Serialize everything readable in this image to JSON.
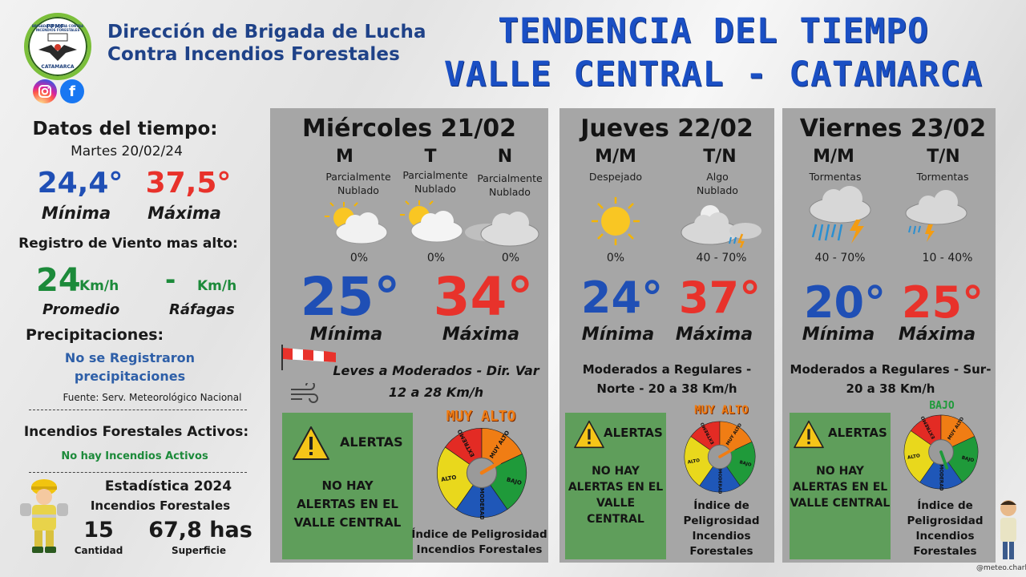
{
  "header": {
    "org_line1": "Dirección de Brigada de Lucha",
    "org_line2": "Contra Incendios Forestales",
    "logo_top": "BRIGADA DE LUCHA CONTRA INCENDIOS FORESTALES",
    "logo_badge": "PPMF",
    "logo_bottom": "CATAMARCA",
    "title_line1": "TENDENCIA DEL TIEMPO",
    "title_line2": "VALLE CENTRAL - CATAMARCA",
    "social": [
      {
        "icon": "instagram-icon",
        "color": "#d6249f"
      },
      {
        "icon": "facebook-icon",
        "color": "#1877f2",
        "glyph": "f"
      }
    ]
  },
  "left": {
    "datos_title": "Datos del tiempo:",
    "datos_date": "Martes 20/02/24",
    "min_value": "24,4°",
    "min_label": "Mínima",
    "max_value": "37,5°",
    "max_label": "Máxima",
    "viento_title": "Registro de Viento mas alto:",
    "viento_prom_value": "24",
    "viento_prom_unit": "Km/h",
    "viento_prom_label": "Promedio",
    "viento_raf_value": "-",
    "viento_raf_unit": "Km/h",
    "viento_raf_label": "Ráfagas",
    "precip_title": "Precipitaciones:",
    "precip_line1": "No se Registraron",
    "precip_line2": "precipitaciones",
    "fuente": "Fuente: Serv. Meteorológico Nacional",
    "incendios_title": "Incendios Forestales Activos:",
    "incendios_value": "No hay Incendios Activos",
    "estad_title": "Estadística 2024",
    "estad_sub": "Incendios Forestales",
    "cantidad_value": "15",
    "cantidad_label": "Cantidad",
    "superficie_value": "67,8 has",
    "superficie_label": "Superficie"
  },
  "days": [
    {
      "title": "Miércoles 21/02",
      "periods": [
        {
          "label": "M",
          "cond1": "Parcialmente",
          "cond2": "Nublado",
          "icon": "partly-cloudy-icon",
          "pct": "0%"
        },
        {
          "label": "T",
          "cond1": "Parcialmente",
          "cond2": "Nublado",
          "icon": "partly-cloudy-icon",
          "pct": "0%"
        },
        {
          "label": "N",
          "cond1": "Parcialmente",
          "cond2": "Nublado",
          "icon": "cloudy-icon",
          "pct": "0%"
        }
      ],
      "min": "25°",
      "min_label": "Mínima",
      "max": "34°",
      "max_label": "Máxima",
      "wind_line1": "Leves a Moderados - Dir. Var",
      "wind_line2": "12 a 28 Km/h",
      "alert_title": "ALERTAS",
      "alert_l1": "NO HAY",
      "alert_l2": "ALERTAS EN EL",
      "alert_l3": "VALLE CENTRAL",
      "risk": "MUY ALTO",
      "idx_l1": "Índice de Peligrosidad",
      "idx_l2": "Incendios Forestales"
    },
    {
      "title": "Jueves 22/02",
      "periods": [
        {
          "label": "M/M",
          "cond1": "Despejado",
          "cond2": "",
          "icon": "sunny-icon",
          "pct": "0%"
        },
        {
          "label": "T/N",
          "cond1": "Algo",
          "cond2": "Nublado",
          "icon": "night-storm-icon",
          "pct": "40 - 70%"
        }
      ],
      "min": "24°",
      "min_label": "Mínima",
      "max": "37°",
      "max_label": "Máxima",
      "wind_line1": "Moderados a Regulares -",
      "wind_line2": "Norte -  20 a 38 Km/h",
      "alert_title": "ALERTAS",
      "alert_l1": "NO HAY",
      "alert_l2": "ALERTAS EN EL",
      "alert_l3": "VALLE",
      "alert_l4": "CENTRAL",
      "risk": "MUY ALTO",
      "idx_l1": "Índice de",
      "idx_l2": "Peligrosidad",
      "idx_l3": "Incendios",
      "idx_l4": "Forestales"
    },
    {
      "title": "Viernes 23/02",
      "periods": [
        {
          "label": "M/M",
          "cond1": "Tormentas",
          "cond2": "",
          "icon": "storm-icon",
          "pct": "40 - 70%"
        },
        {
          "label": "T/N",
          "cond1": "Tormentas",
          "cond2": "",
          "icon": "storm-icon",
          "pct": "10 - 40%"
        }
      ],
      "min": "20°",
      "min_label": "Mínima",
      "max": "25°",
      "max_label": "Máxima",
      "wind_line1": "Moderados a Regulares - Sur-",
      "wind_line2": "20 a 38 Km/h",
      "alert_title": "ALERTAS",
      "alert_l1": "NO HAY",
      "alert_l2": "ALERTAS EN EL",
      "alert_l3": "VALLE CENTRAL",
      "risk": "BAJO",
      "idx_l1": "Índice de",
      "idx_l2": "Peligrosidad",
      "idx_l3": "Incendios",
      "idx_l4": "Forestales"
    }
  ],
  "gauge_labels": {
    "extremo": "EXTREMO",
    "muy_alto": "MUY ALTO",
    "alto": "ALTO",
    "moderado": "MODERADO",
    "bajo": "BAJO"
  },
  "credit": "@meteo.charly",
  "colors": {
    "blue": "#1f4fb5",
    "red": "#e8322b",
    "green": "#1c8a3a",
    "panel": "#a6a6a6",
    "alert_green": "#5f9e5b",
    "risk_orange": "#f07d14",
    "risk_green": "#1f9a3a"
  }
}
